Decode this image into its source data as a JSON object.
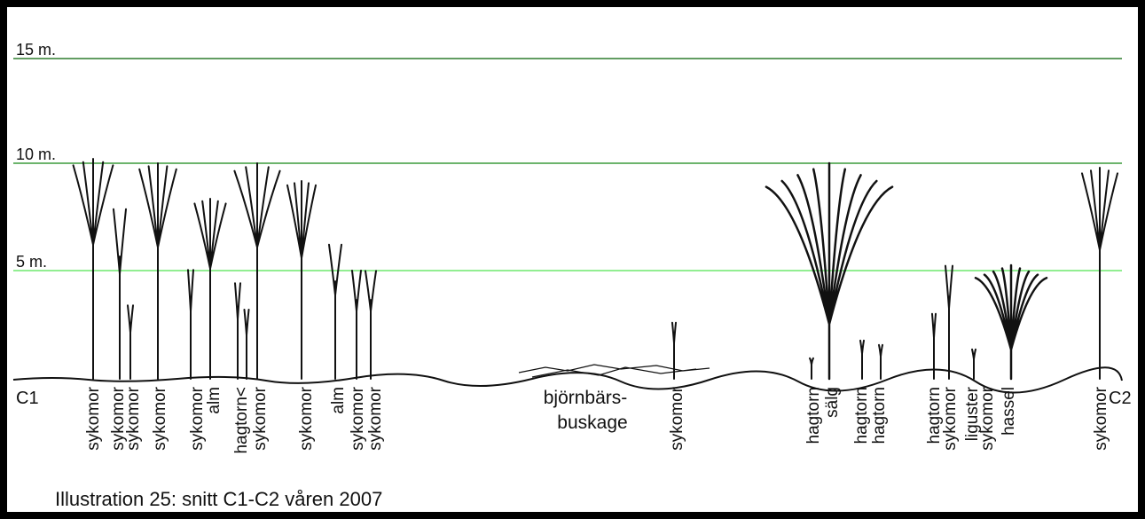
{
  "height_lines": [
    {
      "label": "15 m."
    },
    {
      "label": "10 m."
    },
    {
      "label": "5 m."
    }
  ],
  "ends": {
    "start": "C1",
    "end": "C2"
  },
  "thicket": {
    "line1": "björnbärs-",
    "line2": "buskage"
  },
  "labels": [
    {
      "text": "sykomor"
    },
    {
      "text": "sykomor"
    },
    {
      "text": "sykomor"
    },
    {
      "text": "sykomor"
    },
    {
      "text": "sykomor"
    },
    {
      "text": "alm"
    },
    {
      "text": "hagtorn<"
    },
    {
      "text": "sykomor"
    },
    {
      "text": "sykomor"
    },
    {
      "text": "alm"
    },
    {
      "text": "sykomor"
    },
    {
      "text": "sykomor"
    },
    {
      "text": "sykomor"
    },
    {
      "text": "hagtorn"
    },
    {
      "text": "sälg"
    },
    {
      "text": "hagtorn"
    },
    {
      "text": "hagtorn"
    },
    {
      "text": "hagtorn"
    },
    {
      "text": "sykomor"
    },
    {
      "text": "liguster"
    },
    {
      "text": "sykomor"
    },
    {
      "text": "hassel"
    },
    {
      "text": "sykomor"
    }
  ],
  "caption": "Illustration 25: snitt C1-C2 våren 2007"
}
